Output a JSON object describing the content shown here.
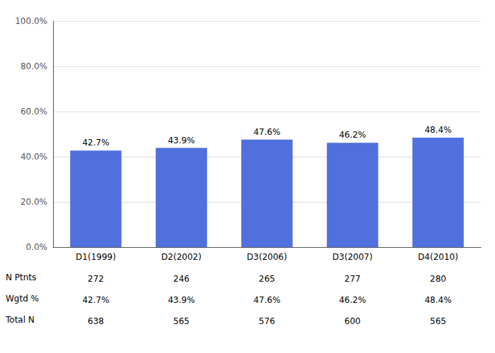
{
  "chart_data": {
    "type": "bar",
    "categories": [
      "D1(1999)",
      "D2(2002)",
      "D3(2006)",
      "D3(2007)",
      "D4(2010)"
    ],
    "values": [
      42.7,
      43.9,
      47.6,
      46.2,
      48.4
    ],
    "value_labels": [
      "42.7%",
      "43.9%",
      "47.6%",
      "46.2%",
      "48.4%"
    ],
    "data_labels": true,
    "ylim": [
      0,
      100
    ],
    "yticks": [
      {
        "value": 0,
        "label": "0.0%"
      },
      {
        "value": 20,
        "label": "20.0%"
      },
      {
        "value": 40,
        "label": "40.0%"
      },
      {
        "value": 60,
        "label": "60.0%"
      },
      {
        "value": 80,
        "label": "80.0%"
      },
      {
        "value": 100,
        "label": "100.0%"
      }
    ],
    "grid": true,
    "table": [
      {
        "label": "N Ptnts",
        "values": [
          272,
          246,
          265,
          277,
          280
        ]
      },
      {
        "label": "Wgtd %",
        "values": [
          42.7,
          43.9,
          47.6,
          46.2,
          48.4
        ],
        "value_labels": [
          "42.7%",
          "43.9%",
          "47.6%",
          "46.2%",
          "48.4%"
        ]
      },
      {
        "label": "Total N",
        "values": [
          638,
          565,
          576,
          600,
          565
        ]
      }
    ]
  }
}
